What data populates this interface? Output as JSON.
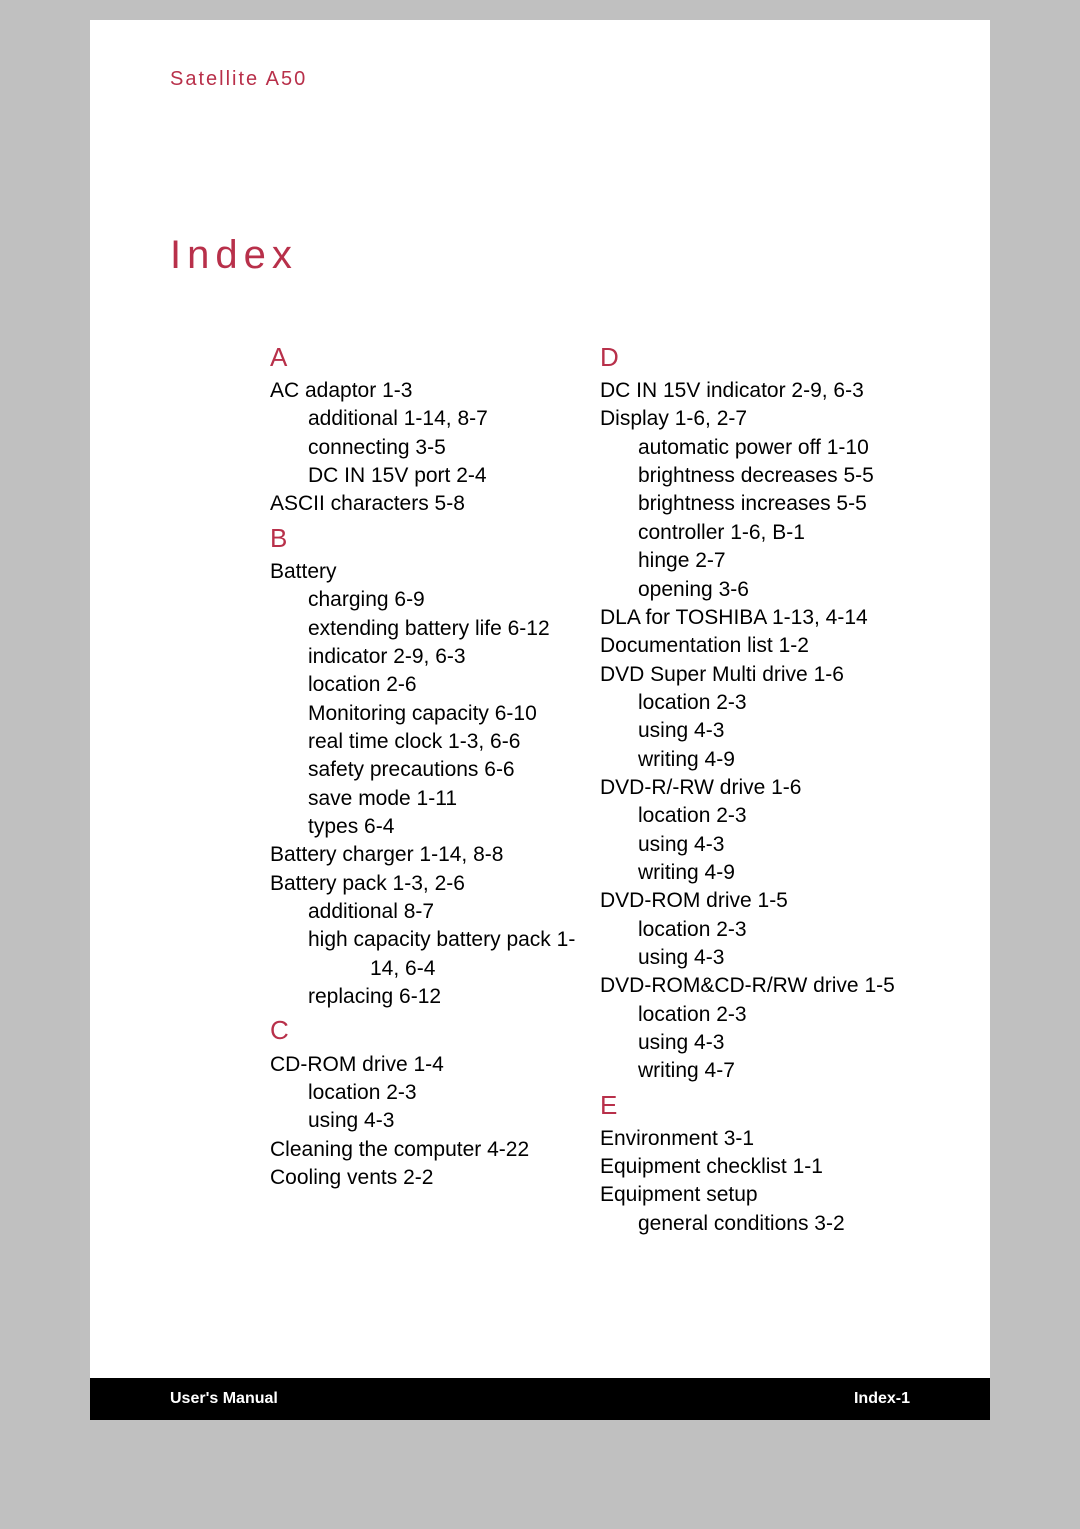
{
  "meta": {
    "dimensions": "1080x1529",
    "colors": {
      "page_bg": "#ffffff",
      "outer_bg": "#c0c0c0",
      "accent": "#b8304a",
      "body_text": "#000000",
      "footer_bg": "#000000",
      "footer_text": "#ffffff"
    },
    "fonts": {
      "family": "Arial/Helvetica",
      "header_title_size_pt": 15,
      "page_title_size_pt": 30,
      "section_letter_size_pt": 19,
      "body_size_pt": 15,
      "footer_size_pt": 12
    }
  },
  "header": {
    "title": "Satellite A50"
  },
  "page": {
    "title": "Index"
  },
  "left_column": [
    {
      "type": "letter",
      "text": "A"
    },
    {
      "type": "entry",
      "text": "AC adaptor 1-3"
    },
    {
      "type": "sub",
      "text": "additional 1-14, 8-7"
    },
    {
      "type": "sub",
      "text": "connecting 3-5"
    },
    {
      "type": "sub",
      "text": "DC IN 15V port 2-4"
    },
    {
      "type": "entry",
      "text": "ASCII characters 5-8"
    },
    {
      "type": "letter",
      "text": "B"
    },
    {
      "type": "entry",
      "text": "Battery"
    },
    {
      "type": "sub",
      "text": "charging 6-9"
    },
    {
      "type": "sub",
      "text": "extending battery life 6-12"
    },
    {
      "type": "sub",
      "text": "indicator 2-9, 6-3"
    },
    {
      "type": "sub",
      "text": "location 2-6"
    },
    {
      "type": "sub",
      "text": "Monitoring capacity 6-10"
    },
    {
      "type": "sub",
      "text": "real time clock 1-3, 6-6"
    },
    {
      "type": "sub",
      "text": "safety precautions 6-6"
    },
    {
      "type": "sub",
      "text": "save mode 1-11"
    },
    {
      "type": "sub",
      "text": "types 6-4"
    },
    {
      "type": "entry",
      "text": "Battery charger 1-14, 8-8"
    },
    {
      "type": "entry",
      "text": "Battery pack 1-3, 2-6"
    },
    {
      "type": "sub",
      "text": "additional 8-7"
    },
    {
      "type": "sub",
      "text": "high capacity battery pack 1-"
    },
    {
      "type": "sub2",
      "text": "14, 6-4"
    },
    {
      "type": "sub",
      "text": "replacing 6-12"
    },
    {
      "type": "letter",
      "text": "C"
    },
    {
      "type": "entry",
      "text": "CD-ROM drive 1-4"
    },
    {
      "type": "sub",
      "text": "location 2-3"
    },
    {
      "type": "sub",
      "text": "using 4-3"
    },
    {
      "type": "entry",
      "text": "Cleaning the computer 4-22"
    },
    {
      "type": "entry",
      "text": "Cooling vents 2-2"
    }
  ],
  "right_column": [
    {
      "type": "letter",
      "text": "D"
    },
    {
      "type": "entry",
      "text": "DC IN 15V indicator 2-9, 6-3"
    },
    {
      "type": "entry",
      "text": "Display 1-6, 2-7"
    },
    {
      "type": "sub",
      "text": "automatic power off 1-10"
    },
    {
      "type": "sub",
      "text": "brightness decreases 5-5"
    },
    {
      "type": "sub",
      "text": "brightness increases 5-5"
    },
    {
      "type": "sub",
      "text": "controller 1-6, B-1"
    },
    {
      "type": "sub",
      "text": "hinge 2-7"
    },
    {
      "type": "sub",
      "text": "opening 3-6"
    },
    {
      "type": "entry",
      "text": "DLA for TOSHIBA 1-13, 4-14"
    },
    {
      "type": "entry",
      "text": "Documentation list 1-2"
    },
    {
      "type": "entry",
      "text": "DVD Super Multi drive 1-6"
    },
    {
      "type": "sub",
      "text": "location 2-3"
    },
    {
      "type": "sub",
      "text": "using 4-3"
    },
    {
      "type": "sub",
      "text": "writing 4-9"
    },
    {
      "type": "entry",
      "text": "DVD-R/-RW drive 1-6"
    },
    {
      "type": "sub",
      "text": "location 2-3"
    },
    {
      "type": "sub",
      "text": "using 4-3"
    },
    {
      "type": "sub",
      "text": "writing 4-9"
    },
    {
      "type": "entry",
      "text": "DVD-ROM drive 1-5"
    },
    {
      "type": "sub",
      "text": "location 2-3"
    },
    {
      "type": "sub",
      "text": "using 4-3"
    },
    {
      "type": "entry",
      "text": "DVD-ROM&CD-R/RW drive 1-5"
    },
    {
      "type": "sub",
      "text": "location 2-3"
    },
    {
      "type": "sub",
      "text": "using 4-3"
    },
    {
      "type": "sub",
      "text": "writing 4-7"
    },
    {
      "type": "letter",
      "text": "E"
    },
    {
      "type": "entry",
      "text": "Environment 3-1"
    },
    {
      "type": "entry",
      "text": "Equipment checklist 1-1"
    },
    {
      "type": "entry",
      "text": "Equipment setup"
    },
    {
      "type": "sub",
      "text": "general conditions 3-2"
    }
  ],
  "footer": {
    "left": "User's Manual",
    "right": "Index-1"
  }
}
